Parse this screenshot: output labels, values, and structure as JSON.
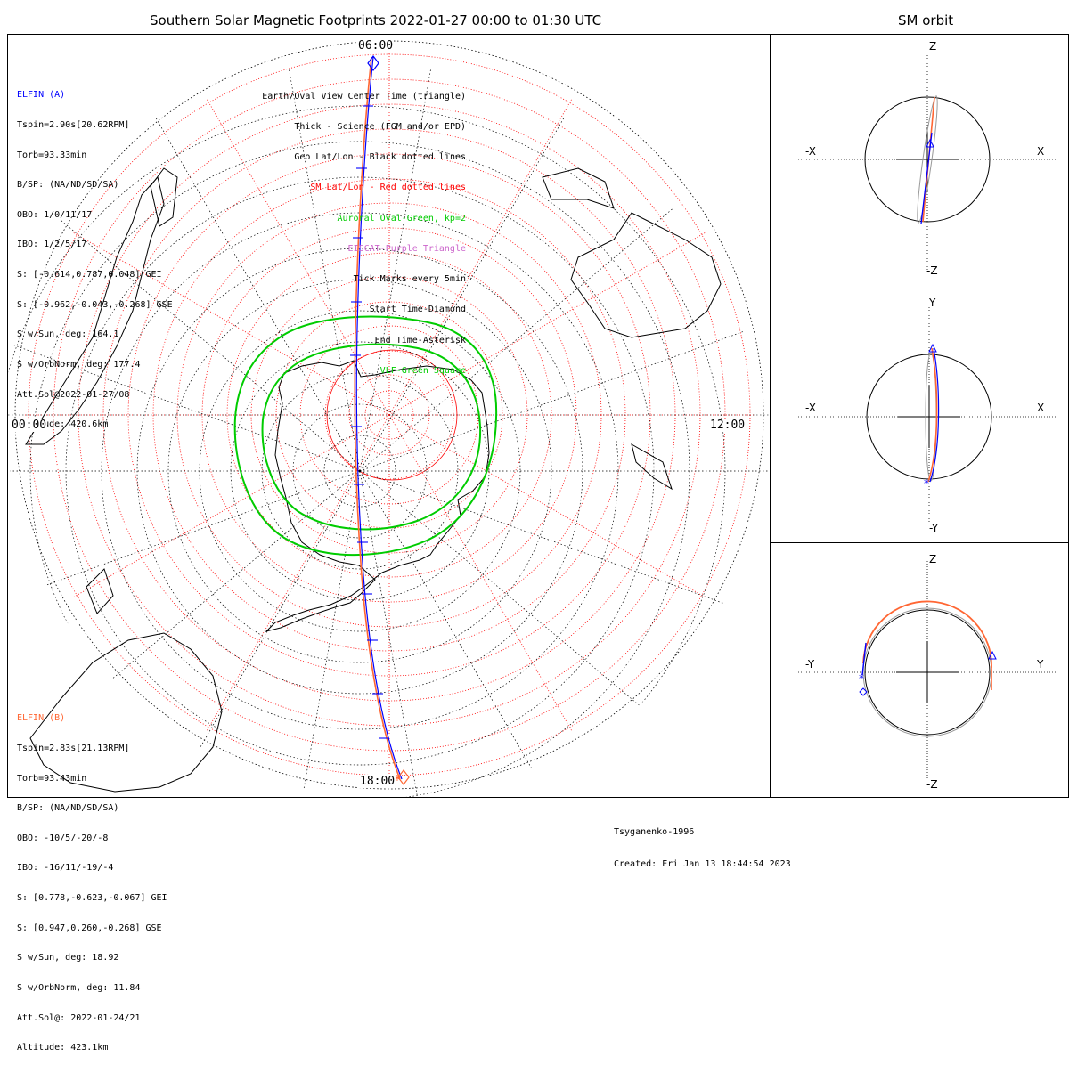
{
  "title": "Southern Solar Magnetic Footprints 2022-01-27 00:00 to 01:30 UTC",
  "side_title": "SM orbit",
  "time_labels": {
    "top": "06:00",
    "left": "00:00",
    "right": "12:00",
    "bottom": "18:00"
  },
  "elfin_a": {
    "name": "ELFIN (A)",
    "color": "#0000ff",
    "lines": [
      "Tspin=2.90s[20.62RPM]",
      "Torb=93.33min",
      "B/SP: (NA/ND/SD/SA)",
      "OBO: 1/0/11/17",
      "IBO: 1/2/5/17",
      "S: [-0.614,0.787,0.048] GEI",
      "S: [-0.962,-0.043,-0.268] GSE",
      "S w/Sun, deg: 164.1",
      "S w/OrbNorm, deg: 177.4",
      "Att.Sol@2022-01-27/08",
      "Altitude: 420.6km"
    ]
  },
  "elfin_b": {
    "name": "ELFIN (B)",
    "color": "#ff6633",
    "lines": [
      "Tspin=2.83s[21.13RPM]",
      "Torb=93.43min",
      "B/SP: (NA/ND/SD/SA)",
      "OBO: -10/5/-20/-8",
      "IBO: -16/11/-19/-4",
      "S: [0.778,-0.623,-0.067] GEI",
      "S: [0.947,0.260,-0.268] GSE",
      "S w/Sun, deg: 18.92",
      "S w/OrbNorm, deg: 11.84",
      "Att.Sol@: 2022-01-24/21",
      "Altitude: 423.1km"
    ]
  },
  "legend": [
    {
      "text": "Earth/Oval View Center Time (triangle)",
      "color": "#000000"
    },
    {
      "text": "Thick - Science (FGM and/or EPD)",
      "color": "#000000"
    },
    {
      "text": "Geo Lat/Lon - Black dotted lines",
      "color": "#000000"
    },
    {
      "text": "SM Lat/Lon - Red dotted lines",
      "color": "#ff0000"
    },
    {
      "text": "Auroral Oval-Green, kp=2",
      "color": "#00cc00"
    },
    {
      "text": "EISCAT-Purple Triangle",
      "color": "#cc66cc"
    },
    {
      "text": "Tick Marks every 5min",
      "color": "#000000"
    },
    {
      "text": "Start Time-Diamond",
      "color": "#000000"
    },
    {
      "text": "End Time-Asterisk",
      "color": "#000000"
    },
    {
      "text": "VLF-Green Square",
      "color": "#00cc00"
    }
  ],
  "credits": {
    "model": "Tsyganenko-1996",
    "created": "Created: Fri Jan 13 18:44:54 2023"
  },
  "sm_panels": [
    {
      "top": "Z",
      "bottom": "-Z",
      "left": "-X",
      "right": "X"
    },
    {
      "top": "Y",
      "bottom": "-Y",
      "left": "-X",
      "right": "X"
    },
    {
      "top": "Z",
      "bottom": "-Z",
      "left": "-Y",
      "right": "Y"
    }
  ],
  "colors": {
    "sm_grid": "#ff0000",
    "geo_grid": "#000000",
    "oval": "#00cc00",
    "elfin_a": "#0000ff",
    "elfin_b": "#ff6633"
  }
}
